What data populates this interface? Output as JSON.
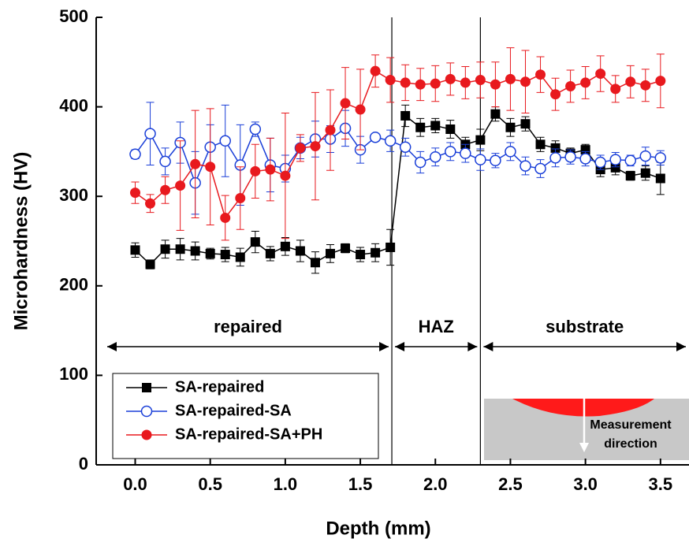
{
  "chart_data": {
    "type": "line",
    "xlabel": "Depth (mm)",
    "ylabel": "Microhardness (HV)",
    "x": [
      0,
      0.1,
      0.2,
      0.3,
      0.4,
      0.5,
      0.6,
      0.7,
      0.8,
      0.9,
      1.0,
      1.1,
      1.2,
      1.3,
      1.4,
      1.5,
      1.6,
      1.7,
      1.8,
      1.9,
      2.0,
      2.1,
      2.2,
      2.3,
      2.4,
      2.5,
      2.6,
      2.7,
      2.8,
      2.9,
      3.0,
      3.1,
      3.2,
      3.3,
      3.4,
      3.5
    ],
    "series": [
      {
        "name": "SA-repaired",
        "color": "#000000",
        "marker": "square",
        "values": [
          240,
          224,
          241,
          241,
          239,
          236,
          235,
          232,
          249,
          236,
          244,
          239,
          226,
          236,
          242,
          235,
          237,
          243,
          390,
          377,
          379,
          375,
          358,
          363,
          392,
          377,
          381,
          358,
          354,
          348,
          352,
          330,
          332,
          323,
          326,
          320
        ],
        "errors": [
          8,
          5,
          10,
          12,
          10,
          6,
          8,
          10,
          12,
          8,
          10,
          12,
          12,
          10,
          5,
          8,
          10,
          20,
          12,
          10,
          8,
          10,
          8,
          12,
          8,
          10,
          8,
          8,
          8,
          6,
          6,
          8,
          8,
          5,
          8,
          18
        ]
      },
      {
        "name": "SA-repaired-SA",
        "color": "#1a3fd8",
        "marker": "circle-open",
        "values": [
          347,
          370,
          339,
          360,
          315,
          355,
          362,
          335,
          375,
          335,
          331,
          354,
          364,
          364,
          376,
          352,
          366,
          362,
          355,
          338,
          344,
          350,
          348,
          341,
          340,
          350,
          334,
          331,
          343,
          344,
          342,
          338,
          341,
          340,
          345,
          343
        ],
        "errors": [
          5,
          35,
          15,
          23,
          35,
          25,
          40,
          45,
          8,
          30,
          15,
          12,
          20,
          15,
          20,
          15,
          3,
          12,
          10,
          12,
          10,
          10,
          10,
          12,
          8,
          10,
          10,
          10,
          10,
          8,
          8,
          8,
          8,
          6,
          10,
          8
        ]
      },
      {
        "name": "SA-repaired-SA+PH",
        "color": "#e8191e",
        "marker": "circle",
        "values": [
          304,
          292,
          307,
          312,
          336,
          333,
          276,
          298,
          328,
          330,
          323,
          354,
          356,
          374,
          404,
          397,
          440,
          430,
          427,
          425,
          426,
          431,
          427,
          430,
          425,
          431,
          428,
          436,
          414,
          423,
          427,
          437,
          420,
          428,
          424,
          429
        ],
        "errors": [
          12,
          10,
          15,
          50,
          60,
          65,
          25,
          35,
          30,
          35,
          70,
          15,
          60,
          45,
          40,
          45,
          18,
          25,
          20,
          18,
          20,
          18,
          18,
          20,
          25,
          35,
          35,
          20,
          18,
          18,
          18,
          20,
          15,
          18,
          18,
          30
        ]
      }
    ],
    "xlim": [
      -0.26,
      3.69
    ],
    "ylim": [
      0,
      500
    ],
    "xticks": [
      {
        "value": 0,
        "label": "0.0"
      },
      {
        "value": 0.5,
        "label": "0.5"
      },
      {
        "value": 1,
        "label": "1.0"
      },
      {
        "value": 1.5,
        "label": "1.5"
      },
      {
        "value": 2,
        "label": "2.0"
      },
      {
        "value": 2.5,
        "label": "2.5"
      },
      {
        "value": 3,
        "label": "3.0"
      },
      {
        "value": 3.5,
        "label": "3.5"
      }
    ],
    "yticks": [
      0,
      100,
      200,
      300,
      400,
      500
    ],
    "boundaries": [
      1.71,
      2.3
    ],
    "regions": [
      "repaired",
      "HAZ",
      "substrate"
    ],
    "inset_label": [
      "Measurement",
      "direction"
    ]
  }
}
